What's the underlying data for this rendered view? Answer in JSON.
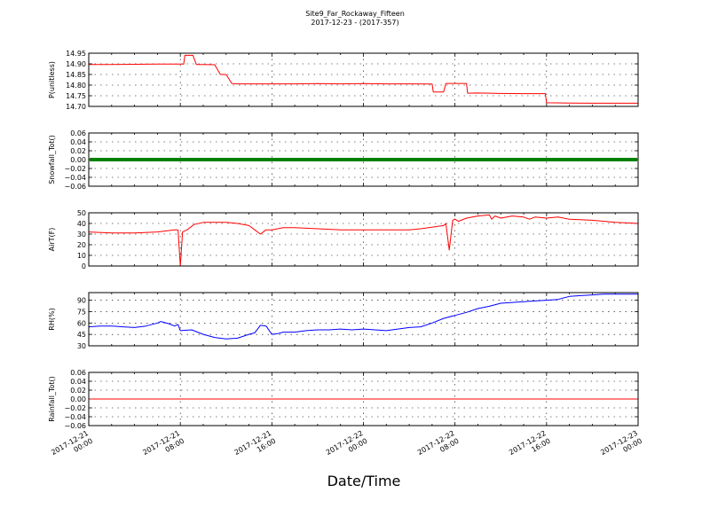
{
  "title": "Site9_Far_Rockaway_Fifteen",
  "subtitle": "2017-12-23 - (2017-357)",
  "xlabel": "Date/Time",
  "chart_data": [
    {
      "type": "line",
      "ylabel": "P(unitless)",
      "color": "#ff0000",
      "ylim": [
        14.7,
        14.95
      ],
      "yticks": [
        "14.70",
        "14.75",
        "14.80",
        "14.85",
        "14.90",
        "14.95"
      ],
      "grid": true,
      "series": [
        {
          "x": [
            0,
            2,
            4,
            6,
            8,
            8.3,
            8.4,
            9.1,
            9.4,
            10,
            11,
            11.5,
            11.9,
            12,
            12.5,
            13,
            14,
            16,
            18,
            20,
            22,
            24,
            26,
            28,
            30,
            30.1,
            30.8,
            31,
            31.2,
            32,
            33,
            33.1,
            34,
            36,
            38,
            39.9,
            40,
            42,
            44,
            46,
            48
          ],
          "y": [
            14.897,
            14.897,
            14.898,
            14.899,
            14.899,
            14.899,
            14.94,
            14.94,
            14.897,
            14.897,
            14.896,
            14.85,
            14.85,
            14.85,
            14.808,
            14.806,
            14.806,
            14.806,
            14.806,
            14.807,
            14.806,
            14.807,
            14.806,
            14.806,
            14.805,
            14.768,
            14.768,
            14.768,
            14.808,
            14.808,
            14.808,
            14.762,
            14.763,
            14.761,
            14.76,
            14.76,
            14.717,
            14.716,
            14.715,
            14.715,
            14.715
          ]
        }
      ]
    },
    {
      "type": "scatter",
      "ylabel": "Snowfall_Tot()",
      "color": "#007f00",
      "ylim": [
        -0.06,
        0.06
      ],
      "yticks": [
        "−0.06",
        "−0.04",
        "−0.02",
        "0.00",
        "0.02",
        "0.04",
        "0.06"
      ],
      "grid": true,
      "series": [
        {
          "x_range": [
            0,
            48
          ],
          "value": 0.0
        }
      ]
    },
    {
      "type": "line",
      "ylabel": "AirT(F)",
      "color": "#ff0000",
      "ylim": [
        0,
        50
      ],
      "yticks": [
        "0",
        "10",
        "20",
        "30",
        "40",
        "50"
      ],
      "grid": true,
      "series": [
        {
          "x": [
            0,
            2,
            4,
            6,
            7.5,
            7.8,
            8,
            8.2,
            8.6,
            9.2,
            10,
            11,
            12,
            13,
            14,
            14.5,
            15,
            15.5,
            16,
            17,
            18,
            20,
            22,
            24,
            26,
            28,
            29,
            31,
            31.2,
            31.5,
            31.8,
            32,
            32.3,
            33,
            34,
            35,
            35.2,
            35.5,
            36,
            37,
            38,
            38.5,
            39,
            40,
            41,
            42,
            44,
            46,
            48
          ],
          "y": [
            32,
            31,
            31,
            32,
            34,
            34,
            0,
            32,
            34,
            39,
            41,
            41,
            41,
            40,
            38,
            34,
            30,
            34,
            34,
            36,
            36,
            35,
            34,
            34,
            34,
            34,
            35,
            38,
            40,
            15,
            43,
            44,
            42,
            45,
            47,
            48,
            44,
            47,
            45,
            47,
            46,
            44,
            46,
            45,
            46,
            44,
            43,
            41,
            40
          ]
        }
      ]
    },
    {
      "type": "line",
      "ylabel": "RH(%)",
      "color": "#0000ff",
      "ylim": [
        30,
        100
      ],
      "yticks": [
        "30",
        "45",
        "60",
        "75",
        "90"
      ],
      "grid": true,
      "series": [
        {
          "x": [
            0,
            1,
            2,
            3,
            4,
            5,
            6,
            6.3,
            7,
            7.5,
            7.8,
            8,
            9,
            10,
            11,
            12,
            13,
            14,
            14.5,
            15,
            15.5,
            16,
            16.5,
            17,
            18,
            19,
            20,
            21,
            22,
            23,
            24,
            26,
            28,
            29,
            30,
            31,
            32,
            33,
            34,
            35,
            36,
            37,
            38,
            39,
            40,
            41,
            42,
            43,
            44,
            45,
            46,
            47,
            48
          ],
          "y": [
            55,
            56,
            56,
            55,
            54,
            56,
            60,
            62,
            59,
            56,
            58,
            50,
            51,
            45,
            41,
            39,
            40,
            45,
            47,
            57,
            56,
            45,
            46,
            48,
            48,
            50,
            51,
            51,
            52,
            51,
            52,
            50,
            54,
            55,
            60,
            66,
            70,
            74,
            79,
            82,
            86,
            87,
            88,
            89,
            90,
            91,
            95,
            96,
            97,
            98,
            98,
            98,
            98
          ]
        }
      ]
    },
    {
      "type": "line",
      "ylabel": "Rainfall_Tot()",
      "color": "#ff0000",
      "ylim": [
        -0.06,
        0.06
      ],
      "yticks": [
        "−0.06",
        "−0.04",
        "−0.02",
        "0.00",
        "0.02",
        "0.04",
        "0.06"
      ],
      "grid": true,
      "series": [
        {
          "x": [
            0,
            48
          ],
          "y": [
            0.0,
            0.0
          ]
        }
      ]
    }
  ],
  "x_axis": {
    "range_hours": [
      0,
      48
    ],
    "tick_hours": [
      0,
      8,
      16,
      24,
      32,
      40,
      48
    ],
    "tick_labels": [
      [
        "2017-12-21",
        "00:00"
      ],
      [
        "2017-12-21",
        "08:00"
      ],
      [
        "2017-12-21",
        "16:00"
      ],
      [
        "2017-12-22",
        "00:00"
      ],
      [
        "2017-12-22",
        "08:00"
      ],
      [
        "2017-12-22",
        "16:00"
      ],
      [
        "2017-12-23",
        "00:00"
      ]
    ]
  }
}
